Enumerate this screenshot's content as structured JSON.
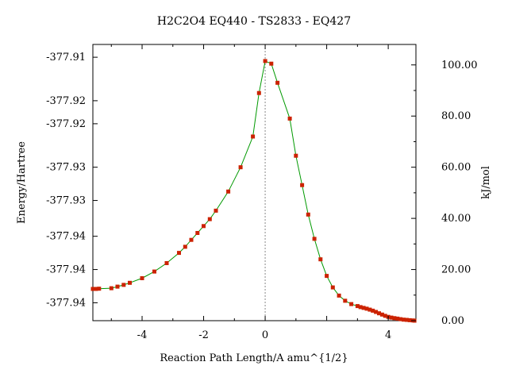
{
  "chart_data": {
    "type": "line",
    "title": "H2C2O4    EQ440 - TS2833 - EQ427",
    "xlabel": "Reaction  Path  Length/A  amu^{1/2}",
    "ylabel_left": "Energy/Hartree",
    "ylabel_right": "kJ/mol",
    "xlim": [
      -5.6,
      4.9
    ],
    "ylim_right": [
      0,
      108
    ],
    "x_ticks": [
      -4,
      -2,
      0,
      4
    ],
    "x_tick_labels": [
      "-4",
      "-2",
      "0",
      "4"
    ],
    "left_ticks": [
      {
        "kj": 103.0,
        "label": "-377.91"
      },
      {
        "kj": 86.0,
        "label": "-377.92"
      },
      {
        "kj": 77.0,
        "label": "-377.92"
      },
      {
        "kj": 60.0,
        "label": "-377.93"
      },
      {
        "kj": 47.0,
        "label": "-377.93"
      },
      {
        "kj": 33.0,
        "label": "-377.94"
      },
      {
        "kj": 20.0,
        "label": "-377.94"
      },
      {
        "kj": 7.0,
        "label": "-377.94"
      }
    ],
    "right_ticks": [
      {
        "kj": 100,
        "label": "100.00"
      },
      {
        "kj": 80,
        "label": "80.00"
      },
      {
        "kj": 60,
        "label": "60.00"
      },
      {
        "kj": 40,
        "label": "40.00"
      },
      {
        "kj": 20,
        "label": "20.00"
      },
      {
        "kj": 0,
        "label": "0.00"
      }
    ],
    "ts_x": 0,
    "line_color": "#009900",
    "marker_color": "#cc2200",
    "ts_line_color": "#888888",
    "points": [
      {
        "x": -5.6,
        "y": 12.4
      },
      {
        "x": -5.5,
        "y": 12.4
      },
      {
        "x": -5.4,
        "y": 12.5
      },
      {
        "x": -5.0,
        "y": 12.7
      },
      {
        "x": -4.8,
        "y": 13.3
      },
      {
        "x": -4.6,
        "y": 14.0
      },
      {
        "x": -4.4,
        "y": 14.8
      },
      {
        "x": -4.0,
        "y": 16.6
      },
      {
        "x": -3.6,
        "y": 19.2
      },
      {
        "x": -3.2,
        "y": 22.5
      },
      {
        "x": -2.8,
        "y": 26.5
      },
      {
        "x": -2.6,
        "y": 28.9
      },
      {
        "x": -2.4,
        "y": 31.6
      },
      {
        "x": -2.2,
        "y": 34.3
      },
      {
        "x": -2.0,
        "y": 37.0
      },
      {
        "x": -1.8,
        "y": 39.7
      },
      {
        "x": -1.6,
        "y": 43.0
      },
      {
        "x": -1.2,
        "y": 50.5
      },
      {
        "x": -0.8,
        "y": 60.0
      },
      {
        "x": -0.4,
        "y": 72.0
      },
      {
        "x": -0.2,
        "y": 89.0
      },
      {
        "x": 0.0,
        "y": 101.5
      },
      {
        "x": 0.2,
        "y": 100.5
      },
      {
        "x": 0.4,
        "y": 93.0
      },
      {
        "x": 0.8,
        "y": 79.0
      },
      {
        "x": 1.0,
        "y": 64.5
      },
      {
        "x": 1.2,
        "y": 53.0
      },
      {
        "x": 1.4,
        "y": 41.5
      },
      {
        "x": 1.6,
        "y": 32.0
      },
      {
        "x": 1.8,
        "y": 24.0
      },
      {
        "x": 2.0,
        "y": 17.5
      },
      {
        "x": 2.2,
        "y": 13.0
      },
      {
        "x": 2.4,
        "y": 9.8
      },
      {
        "x": 2.6,
        "y": 7.8
      },
      {
        "x": 2.8,
        "y": 6.5
      },
      {
        "x": 3.0,
        "y": 5.7
      },
      {
        "x": 3.1,
        "y": 5.3
      },
      {
        "x": 3.2,
        "y": 5.0
      },
      {
        "x": 3.3,
        "y": 4.7
      },
      {
        "x": 3.4,
        "y": 4.3
      },
      {
        "x": 3.5,
        "y": 3.9
      },
      {
        "x": 3.6,
        "y": 3.4
      },
      {
        "x": 3.7,
        "y": 2.9
      },
      {
        "x": 3.8,
        "y": 2.4
      },
      {
        "x": 3.9,
        "y": 1.9
      },
      {
        "x": 4.0,
        "y": 1.5
      },
      {
        "x": 4.1,
        "y": 1.2
      },
      {
        "x": 4.2,
        "y": 1.0
      },
      {
        "x": 4.3,
        "y": 0.8
      },
      {
        "x": 4.4,
        "y": 0.6
      },
      {
        "x": 4.5,
        "y": 0.4
      },
      {
        "x": 4.6,
        "y": 0.3
      },
      {
        "x": 4.7,
        "y": 0.2
      },
      {
        "x": 4.8,
        "y": 0.1
      },
      {
        "x": 4.85,
        "y": 0.0
      }
    ]
  }
}
